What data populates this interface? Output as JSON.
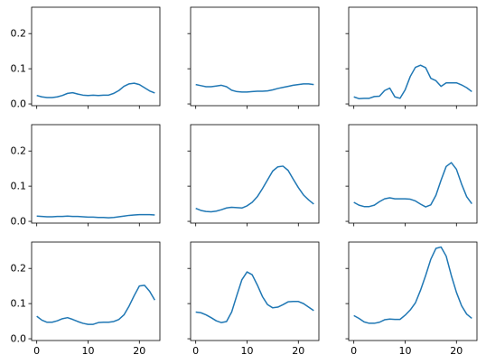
{
  "figure": {
    "rows": 3,
    "cols": 3,
    "shared_y_ticks": [
      "0.0",
      "0.1",
      "0.2"
    ],
    "shared_x_ticks": [
      "0",
      "10",
      "20"
    ]
  },
  "chart_data": [
    {
      "type": "line",
      "row": 0,
      "col": 0,
      "xlim": [
        -1,
        24
      ],
      "ylim": [
        -0.005,
        0.275
      ],
      "x": [
        0,
        1,
        2,
        3,
        4,
        5,
        6,
        7,
        8,
        9,
        10,
        11,
        12,
        13,
        14,
        15,
        16,
        17,
        18,
        19,
        20,
        21,
        22,
        23
      ],
      "series": [
        {
          "color": "#1f77b4",
          "values": [
            0.024,
            0.02,
            0.018,
            0.018,
            0.02,
            0.024,
            0.03,
            0.032,
            0.028,
            0.025,
            0.024,
            0.025,
            0.024,
            0.025,
            0.025,
            0.03,
            0.038,
            0.05,
            0.057,
            0.059,
            0.055,
            0.046,
            0.037,
            0.031
          ]
        }
      ],
      "xticks": [
        0,
        10,
        20
      ],
      "yticks": [
        0,
        0.1,
        0.2
      ]
    },
    {
      "type": "line",
      "row": 0,
      "col": 1,
      "xlim": [
        -1,
        24
      ],
      "ylim": [
        -0.005,
        0.275
      ],
      "x": [
        0,
        1,
        2,
        3,
        4,
        5,
        6,
        7,
        8,
        9,
        10,
        11,
        12,
        13,
        14,
        15,
        16,
        17,
        18,
        19,
        20,
        21,
        22,
        23
      ],
      "series": [
        {
          "color": "#1f77b4",
          "values": [
            0.055,
            0.052,
            0.049,
            0.049,
            0.051,
            0.053,
            0.049,
            0.039,
            0.035,
            0.034,
            0.034,
            0.035,
            0.036,
            0.036,
            0.037,
            0.04,
            0.044,
            0.047,
            0.05,
            0.053,
            0.055,
            0.057,
            0.057,
            0.055
          ]
        }
      ],
      "xticks": [
        0,
        10,
        20
      ],
      "yticks": [
        0,
        0.1,
        0.2
      ]
    },
    {
      "type": "line",
      "row": 0,
      "col": 2,
      "xlim": [
        -1,
        24
      ],
      "ylim": [
        -0.005,
        0.275
      ],
      "x": [
        0,
        1,
        2,
        3,
        4,
        5,
        6,
        7,
        8,
        9,
        10,
        11,
        12,
        13,
        14,
        15,
        16,
        17,
        18,
        19,
        20,
        21,
        22,
        23
      ],
      "series": [
        {
          "color": "#1f77b4",
          "values": [
            0.02,
            0.015,
            0.016,
            0.016,
            0.021,
            0.022,
            0.038,
            0.045,
            0.02,
            0.016,
            0.04,
            0.078,
            0.104,
            0.11,
            0.103,
            0.073,
            0.066,
            0.05,
            0.06,
            0.06,
            0.06,
            0.054,
            0.046,
            0.035
          ]
        }
      ],
      "xticks": [
        0,
        10,
        20
      ],
      "yticks": [
        0,
        0.1,
        0.2
      ]
    },
    {
      "type": "line",
      "row": 1,
      "col": 0,
      "xlim": [
        -1,
        24
      ],
      "ylim": [
        -0.005,
        0.275
      ],
      "x": [
        0,
        1,
        2,
        3,
        4,
        5,
        6,
        7,
        8,
        9,
        10,
        11,
        12,
        13,
        14,
        15,
        16,
        17,
        18,
        19,
        20,
        21,
        22,
        23
      ],
      "series": [
        {
          "color": "#1f77b4",
          "values": [
            0.015,
            0.014,
            0.013,
            0.013,
            0.014,
            0.014,
            0.015,
            0.014,
            0.014,
            0.013,
            0.012,
            0.012,
            0.011,
            0.011,
            0.01,
            0.011,
            0.013,
            0.015,
            0.017,
            0.018,
            0.019,
            0.019,
            0.019,
            0.018
          ]
        }
      ],
      "xticks": [
        0,
        10,
        20
      ],
      "yticks": [
        0,
        0.1,
        0.2
      ]
    },
    {
      "type": "line",
      "row": 1,
      "col": 1,
      "xlim": [
        -1,
        24
      ],
      "ylim": [
        -0.005,
        0.275
      ],
      "x": [
        0,
        1,
        2,
        3,
        4,
        5,
        6,
        7,
        8,
        9,
        10,
        11,
        12,
        13,
        14,
        15,
        16,
        17,
        18,
        19,
        20,
        21,
        22,
        23
      ],
      "series": [
        {
          "color": "#1f77b4",
          "values": [
            0.037,
            0.031,
            0.028,
            0.027,
            0.029,
            0.033,
            0.038,
            0.04,
            0.039,
            0.038,
            0.044,
            0.054,
            0.07,
            0.093,
            0.118,
            0.143,
            0.155,
            0.157,
            0.145,
            0.12,
            0.096,
            0.075,
            0.061,
            0.049
          ]
        }
      ],
      "xticks": [
        0,
        10,
        20
      ],
      "yticks": [
        0,
        0.1,
        0.2
      ]
    },
    {
      "type": "line",
      "row": 1,
      "col": 2,
      "xlim": [
        -1,
        24
      ],
      "ylim": [
        -0.005,
        0.275
      ],
      "x": [
        0,
        1,
        2,
        3,
        4,
        5,
        6,
        7,
        8,
        9,
        10,
        11,
        12,
        13,
        14,
        15,
        16,
        17,
        18,
        19,
        20,
        21,
        22,
        23
      ],
      "series": [
        {
          "color": "#1f77b4",
          "values": [
            0.054,
            0.046,
            0.042,
            0.042,
            0.046,
            0.056,
            0.064,
            0.067,
            0.064,
            0.064,
            0.064,
            0.063,
            0.058,
            0.049,
            0.041,
            0.047,
            0.074,
            0.117,
            0.156,
            0.167,
            0.148,
            0.106,
            0.07,
            0.05
          ]
        }
      ],
      "xticks": [
        0,
        10,
        20
      ],
      "yticks": [
        0,
        0.1,
        0.2
      ]
    },
    {
      "type": "line",
      "row": 2,
      "col": 0,
      "xlim": [
        -1,
        24
      ],
      "ylim": [
        -0.005,
        0.275
      ],
      "x": [
        0,
        1,
        2,
        3,
        4,
        5,
        6,
        7,
        8,
        9,
        10,
        11,
        12,
        13,
        14,
        15,
        16,
        17,
        18,
        19,
        20,
        21,
        22,
        23
      ],
      "series": [
        {
          "color": "#1f77b4",
          "values": [
            0.064,
            0.053,
            0.047,
            0.047,
            0.051,
            0.057,
            0.06,
            0.055,
            0.049,
            0.044,
            0.041,
            0.041,
            0.046,
            0.047,
            0.047,
            0.049,
            0.055,
            0.068,
            0.093,
            0.123,
            0.15,
            0.152,
            0.135,
            0.11
          ]
        }
      ],
      "xticks": [
        0,
        10,
        20
      ],
      "yticks": [
        0,
        0.1,
        0.2
      ]
    },
    {
      "type": "line",
      "row": 2,
      "col": 1,
      "xlim": [
        -1,
        24
      ],
      "ylim": [
        -0.005,
        0.275
      ],
      "x": [
        0,
        1,
        2,
        3,
        4,
        5,
        6,
        7,
        8,
        9,
        10,
        11,
        12,
        13,
        14,
        15,
        16,
        17,
        18,
        19,
        20,
        21,
        22,
        23
      ],
      "series": [
        {
          "color": "#1f77b4",
          "values": [
            0.076,
            0.074,
            0.068,
            0.06,
            0.051,
            0.046,
            0.049,
            0.076,
            0.123,
            0.168,
            0.19,
            0.182,
            0.153,
            0.12,
            0.097,
            0.088,
            0.09,
            0.097,
            0.105,
            0.106,
            0.106,
            0.1,
            0.09,
            0.08
          ]
        }
      ],
      "xticks": [
        0,
        10,
        20
      ],
      "yticks": [
        0,
        0.1,
        0.2
      ]
    },
    {
      "type": "line",
      "row": 2,
      "col": 2,
      "xlim": [
        -1,
        24
      ],
      "ylim": [
        -0.005,
        0.275
      ],
      "x": [
        0,
        1,
        2,
        3,
        4,
        5,
        6,
        7,
        8,
        9,
        10,
        11,
        12,
        13,
        14,
        15,
        16,
        17,
        18,
        19,
        20,
        21,
        22,
        23
      ],
      "series": [
        {
          "color": "#1f77b4",
          "values": [
            0.066,
            0.058,
            0.048,
            0.044,
            0.044,
            0.047,
            0.054,
            0.056,
            0.055,
            0.055,
            0.067,
            0.082,
            0.102,
            0.138,
            0.18,
            0.226,
            0.257,
            0.261,
            0.235,
            0.18,
            0.132,
            0.094,
            0.07,
            0.058
          ]
        }
      ],
      "xticks": [
        0,
        10,
        20
      ],
      "yticks": [
        0,
        0.1,
        0.2
      ]
    }
  ]
}
